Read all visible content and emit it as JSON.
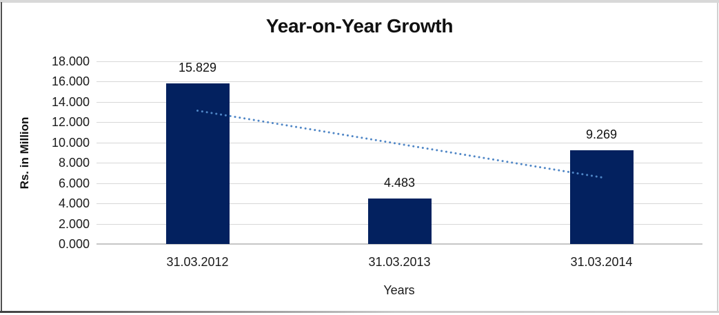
{
  "chart_data": {
    "type": "bar",
    "title": "Year-on-Year Growth",
    "xlabel": "Years",
    "ylabel": "Rs. in Million",
    "categories": [
      "31.03.2012",
      "31.03.2013",
      "31.03.2014"
    ],
    "values": [
      15.829,
      4.483,
      9.269
    ],
    "value_labels": [
      "15.829",
      "4.483",
      "9.269"
    ],
    "ylim": [
      0,
      18
    ],
    "ytick_step": 2,
    "ytick_labels": [
      "0.000",
      "2.000",
      "4.000",
      "6.000",
      "8.000",
      "10.000",
      "12.000",
      "14.000",
      "16.000",
      "18.000"
    ],
    "grid": true,
    "legend": "none",
    "bar_color": "#03215f",
    "gridline_color": "#d7d7d7",
    "axis_line_color": "#c6c6c6",
    "text_color": "#1a1a1a",
    "trendline": {
      "type": "linear",
      "style": "dotted",
      "color": "#4f86c6",
      "start_value": 13.14,
      "end_value": 6.57
    }
  }
}
